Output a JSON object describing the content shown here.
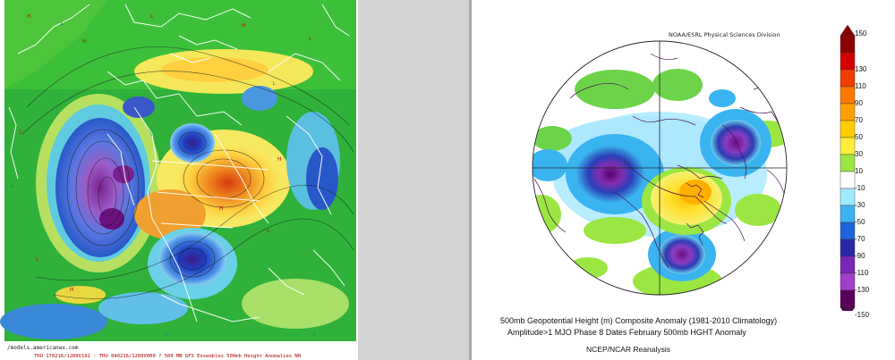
{
  "left_map": {
    "source_label": "/models.americanwx.com",
    "footer": "THU 170216/1200V192 : THU 040216/1200V000  ? 500 MB GFS Ensembles 500mb Height Anomalies NH"
  },
  "right_map": {
    "credit": "NOAA/ESRL Physical Sciences Division",
    "caption_line1": "500mb Geopotential Height (m) Composite Anomaly (1981-2010 Climatology)",
    "caption_line2": "Amplitude>1 MJO Phase 8 Dates February 500mb HGHT Anomaly",
    "caption_line3": "NCEP/NCAR Reanalysis",
    "colorbar": {
      "labels": [
        "150",
        "130",
        "110",
        "90",
        "70",
        "50",
        "30",
        "10",
        "-10",
        "-30",
        "-50",
        "-70",
        "-90",
        "-110",
        "-130",
        "-150"
      ],
      "colors": [
        "#8b0000",
        "#d40000",
        "#f03c00",
        "#ff7800",
        "#ffa000",
        "#ffcc00",
        "#ffee3a",
        "#9be642",
        "#ffffff",
        "#9eeaff",
        "#3cb4f0",
        "#1e64dc",
        "#2828a8",
        "#7828b4",
        "#a040c8",
        "#5a005a"
      ]
    }
  }
}
